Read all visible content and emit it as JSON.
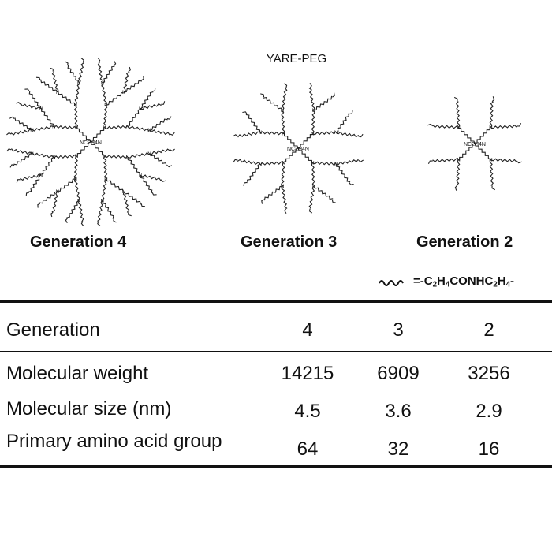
{
  "figure": {
    "title": "YARE-PEG",
    "core_label": "NC2H4N"
  },
  "dendrimers": [
    {
      "label": "Generation 4",
      "generation": 4
    },
    {
      "label": "Generation 3",
      "generation": 3
    },
    {
      "label": "Generation 2",
      "generation": 2
    }
  ],
  "legend": {
    "linker_icon": "wavy-line-icon",
    "linker_prefix": "=-C",
    "linker_formula": "=-C2H4CONHC2H4-"
  },
  "table": {
    "header": {
      "label": "Generation",
      "values": [
        "4",
        "3",
        "2"
      ]
    },
    "rows": [
      {
        "label": "Molecular weight",
        "values": [
          "14215",
          "6909",
          "3256"
        ]
      },
      {
        "label": "Molecular size (nm)",
        "values": [
          "4.5",
          "3.6",
          "2.9"
        ]
      },
      {
        "label": "Primary amino acid group",
        "values": [
          "64",
          "32",
          "16"
        ]
      }
    ]
  }
}
